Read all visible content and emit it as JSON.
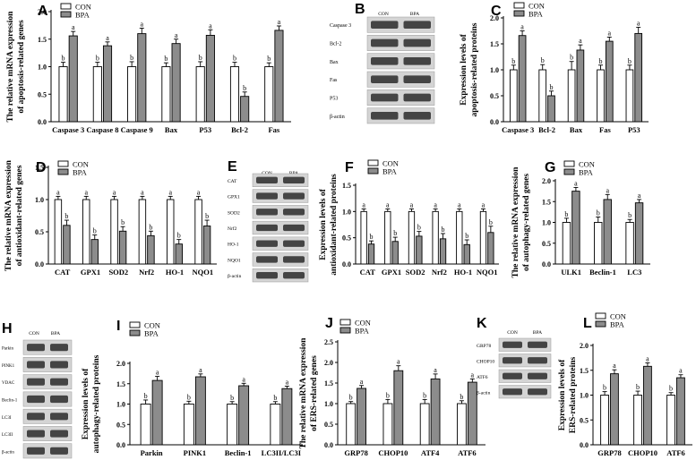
{
  "chart_data": [
    {
      "panel": "A",
      "type": "bar",
      "ylabel": [
        "The relative mRNA expression",
        "of apoptosis-related genes"
      ],
      "categories": [
        "Caspase 3",
        "Caspase 8",
        "Caspase 9",
        "Bax",
        "P53",
        "Bcl-2",
        "Fas"
      ],
      "series": [
        {
          "name": "CON",
          "values": [
            1.0,
            1.0,
            1.0,
            1.0,
            1.0,
            1.0,
            1.0
          ],
          "err": [
            0.08,
            0.08,
            0.09,
            0.07,
            0.09,
            0.08,
            0.07
          ],
          "letters": [
            "b",
            "b",
            "b",
            "b",
            "b",
            "b",
            "b"
          ]
        },
        {
          "name": "BPA",
          "values": [
            1.56,
            1.38,
            1.6,
            1.42,
            1.57,
            0.46,
            1.66
          ],
          "err": [
            0.08,
            0.07,
            0.1,
            0.08,
            0.1,
            0.08,
            0.08
          ],
          "letters": [
            "a",
            "a",
            "a",
            "a",
            "a",
            "b",
            "a"
          ]
        }
      ],
      "ylim": [
        0,
        2.0
      ],
      "yticks": [
        "0.0",
        "0.5",
        "1.0",
        "1.5",
        "2.0"
      ],
      "grid": false,
      "legend": "top-left"
    },
    {
      "panel": "C",
      "type": "bar",
      "ylabel": [
        "Expression levels of",
        "apoptosis-related proteins"
      ],
      "categories": [
        "Caspase 3",
        "Bcl-2",
        "Bax",
        "Fas",
        "P53"
      ],
      "series": [
        {
          "name": "CON",
          "values": [
            1.0,
            1.0,
            1.0,
            1.0,
            1.0
          ],
          "err": [
            0.09,
            0.1,
            0.16,
            0.09,
            0.09
          ],
          "letters": [
            "b",
            "b",
            "b",
            "b",
            "b"
          ]
        },
        {
          "name": "BPA",
          "values": [
            1.66,
            0.5,
            1.38,
            1.55,
            1.7
          ],
          "err": [
            0.09,
            0.09,
            0.1,
            0.08,
            0.12
          ],
          "letters": [
            "a",
            "b",
            "a",
            "a",
            "a"
          ]
        }
      ],
      "ylim": [
        0,
        2.0
      ],
      "yticks": [
        "0.0",
        "0.5",
        "1.0",
        "1.5",
        "2.0"
      ],
      "grid": false,
      "legend": "top-left"
    },
    {
      "panel": "D",
      "type": "bar",
      "ylabel": [
        "The relative mRNA expression",
        "of antioxidant-related genes"
      ],
      "categories": [
        "CAT",
        "GPX1",
        "SOD2",
        "Nrf2",
        "HO-1",
        "NQO1"
      ],
      "series": [
        {
          "name": "CON",
          "values": [
            1.0,
            1.0,
            1.0,
            1.0,
            1.0,
            1.0
          ],
          "err": [
            0.05,
            0.05,
            0.05,
            0.05,
            0.05,
            0.05
          ],
          "letters": [
            "a",
            "a",
            "a",
            "a",
            "a",
            "a"
          ]
        },
        {
          "name": "BPA",
          "values": [
            0.6,
            0.38,
            0.51,
            0.44,
            0.31,
            0.59
          ],
          "err": [
            0.08,
            0.07,
            0.07,
            0.07,
            0.07,
            0.09
          ],
          "letters": [
            "b",
            "b",
            "b",
            "b",
            "b",
            "b"
          ]
        }
      ],
      "ylim": [
        0,
        1.5
      ],
      "yticks": [
        "0.0",
        "0.5",
        "1.0",
        "1.5"
      ],
      "grid": false,
      "legend": "top-left"
    },
    {
      "panel": "F",
      "type": "bar",
      "ylabel": [
        "Expression levels of",
        "antioxidant-related proteins"
      ],
      "categories": [
        "CAT",
        "GPX1",
        "SOD2",
        "Nrf2",
        "HO-1",
        "NQO1"
      ],
      "series": [
        {
          "name": "CON",
          "values": [
            1.0,
            1.0,
            1.0,
            1.0,
            1.0,
            1.0
          ],
          "err": [
            0.05,
            0.05,
            0.05,
            0.05,
            0.05,
            0.05
          ],
          "letters": [
            "a",
            "a",
            "a",
            "a",
            "a",
            "a"
          ]
        },
        {
          "name": "BPA",
          "values": [
            0.38,
            0.43,
            0.53,
            0.48,
            0.37,
            0.6
          ],
          "err": [
            0.06,
            0.08,
            0.09,
            0.1,
            0.09,
            0.12
          ],
          "letters": [
            "b",
            "b",
            "b",
            "b",
            "b",
            "b"
          ]
        }
      ],
      "ylim": [
        0,
        1.5
      ],
      "yticks": [
        "0.0",
        "0.5",
        "1.0",
        "1.5"
      ],
      "grid": false,
      "legend": "top-left"
    },
    {
      "panel": "G",
      "type": "bar",
      "ylabel": [
        "The relative mRNA expression",
        "of autophagy-related genes"
      ],
      "categories": [
        "ULK1",
        "Beclin-1",
        "LC3"
      ],
      "series": [
        {
          "name": "CON",
          "values": [
            1.0,
            1.0,
            1.0
          ],
          "err": [
            0.1,
            0.13,
            0.07
          ],
          "letters": [
            "b",
            "b",
            "b"
          ]
        },
        {
          "name": "BPA",
          "values": [
            1.75,
            1.55,
            1.47
          ],
          "err": [
            0.09,
            0.12,
            0.08
          ],
          "letters": [
            "a",
            "a",
            "a"
          ]
        }
      ],
      "ylim": [
        0,
        2.0
      ],
      "yticks": [
        "0.0",
        "0.5",
        "1.0",
        "1.5",
        "2.0"
      ],
      "grid": false,
      "legend": "top-left"
    },
    {
      "panel": "I",
      "type": "bar",
      "ylabel": [
        "Expression levels of",
        "autophagy-related proteins"
      ],
      "categories": [
        "Parkin",
        "PINK1",
        "Beclin-1",
        "LC3II/LC3I"
      ],
      "series": [
        {
          "name": "CON",
          "values": [
            1.0,
            1.0,
            1.0,
            1.0
          ],
          "err": [
            0.1,
            0.07,
            0.06,
            0.06
          ],
          "letters": [
            "b",
            "b",
            "b",
            "b"
          ]
        },
        {
          "name": "BPA",
          "values": [
            1.58,
            1.67,
            1.45,
            1.38
          ],
          "err": [
            0.1,
            0.07,
            0.06,
            0.06
          ],
          "letters": [
            "a",
            "a",
            "a",
            "a"
          ]
        }
      ],
      "ylim": [
        0,
        2.0
      ],
      "yticks": [
        "0.0",
        "0.5",
        "1.0",
        "1.5",
        "2.0"
      ],
      "grid": false,
      "legend": "top-left"
    },
    {
      "panel": "J",
      "type": "bar",
      "ylabel": [
        "The relative mRNA expression",
        "of ERS-related genes"
      ],
      "categories": [
        "GRP78",
        "CHOP10",
        "ATF4",
        "ATF6"
      ],
      "series": [
        {
          "name": "CON",
          "values": [
            1.0,
            1.0,
            1.0,
            1.0
          ],
          "err": [
            0.05,
            0.1,
            0.1,
            0.07
          ],
          "letters": [
            "b",
            "b",
            "b",
            "b"
          ]
        },
        {
          "name": "BPA",
          "values": [
            1.37,
            1.8,
            1.6,
            1.52
          ],
          "err": [
            0.07,
            0.12,
            0.12,
            0.08
          ],
          "letters": [
            "a",
            "a",
            "a",
            "a"
          ]
        }
      ],
      "ylim": [
        0,
        2.5
      ],
      "yticks": [
        "0.0",
        "0.5",
        "1.0",
        "1.5",
        "2.0",
        "2.5"
      ],
      "grid": false,
      "legend": "top-left"
    },
    {
      "panel": "L",
      "type": "bar",
      "ylabel": [
        "Expression levels of",
        "ERS-related proteins"
      ],
      "categories": [
        "GRP78",
        "CHOP10",
        "ATF6"
      ],
      "series": [
        {
          "name": "CON",
          "values": [
            1.0,
            1.0,
            1.0
          ],
          "err": [
            0.07,
            0.08,
            0.05
          ],
          "letters": [
            "b",
            "b",
            "b"
          ]
        },
        {
          "name": "BPA",
          "values": [
            1.43,
            1.58,
            1.35
          ],
          "err": [
            0.08,
            0.07,
            0.06
          ],
          "letters": [
            "a",
            "a",
            "a"
          ]
        }
      ],
      "ylim": [
        0,
        2.0
      ],
      "yticks": [
        "0.0",
        "0.5",
        "1.0",
        "1.5",
        "2.0"
      ],
      "grid": false,
      "legend": "top-left"
    }
  ],
  "blots": [
    {
      "panel": "B",
      "header": [
        "CON",
        "BPA"
      ],
      "rows": [
        "Caspase 3",
        "Bcl-2",
        "Bax",
        "Fas",
        "P53",
        "β-actin"
      ]
    },
    {
      "panel": "E",
      "header": [
        "CON",
        "BPA"
      ],
      "rows": [
        "CAT",
        "GPX1",
        "SOD2",
        "Nrf2",
        "HO-1",
        "NQO1",
        "β-actin"
      ]
    },
    {
      "panel": "H",
      "header": [
        "CON",
        "BPA"
      ],
      "rows": [
        "Parkin",
        "PINK1",
        "VDAC",
        "Beclin-1",
        "LC3I",
        "LC3II",
        "β-actin"
      ]
    },
    {
      "panel": "K",
      "header": [
        "CON",
        "BPA"
      ],
      "rows": [
        "GRP78",
        "CHOP10",
        "ATF6",
        "β-actin"
      ]
    }
  ],
  "colors": {
    "CON": "#ffffff",
    "BPA": "#8c8c8c",
    "line": "#000000",
    "blot": "#2a2a2a"
  }
}
